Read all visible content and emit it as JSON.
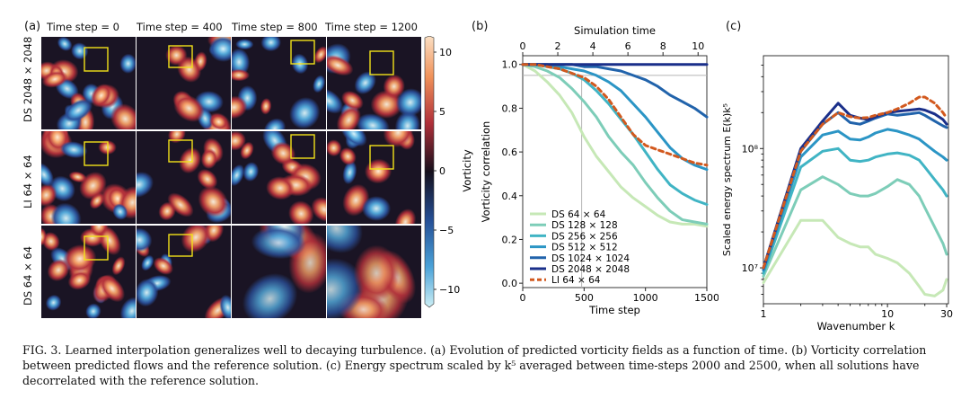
{
  "panel_a": {
    "label": "(a)",
    "columns": [
      "Time step = 0",
      "Time step = 400",
      "Time step = 800",
      "Time step = 1200"
    ],
    "rows": [
      "DS 2048 × 2048",
      "LI 64 × 64",
      "DS 64 × 64"
    ],
    "colorbar": {
      "title": "Vorticity",
      "ticks": [
        "10",
        "5",
        "0",
        "−5",
        "−10"
      ]
    }
  },
  "panel_b": {
    "label": "(b)"
  },
  "panel_c": {
    "label": "(c)"
  },
  "caption": {
    "fig": "FIG. 3.",
    "text": "Learned interpolation generalizes well to decaying turbulence. (a) Evolution of predicted vorticity fields as a function of time. (b) Vorticity correlation between predicted flows and the reference solution. (c) Energy spectrum scaled by k⁵ averaged between time-steps 2000 and 2500, when all solutions have decorrelated with the reference solution."
  },
  "chart_data": [
    {
      "type": "line",
      "title": "",
      "xlabel": "Time step",
      "ylabel": "Vorticity correlation",
      "top_xlabel": "Simulation time",
      "xlim": [
        0,
        1500
      ],
      "ylim": [
        0.0,
        1.0
      ],
      "top_xlim": [
        0,
        10.5
      ],
      "xticks": [
        "0",
        "500",
        "1000",
        "1500"
      ],
      "yticks": [
        "0.0",
        "0.2",
        "0.4",
        "0.6",
        "0.8",
        "1.0"
      ],
      "top_xticks": [
        "0",
        "2",
        "4",
        "6",
        "8",
        "10"
      ],
      "x": [
        0,
        100,
        200,
        300,
        400,
        500,
        600,
        700,
        800,
        900,
        1000,
        1100,
        1200,
        1300,
        1400,
        1500
      ],
      "series": [
        {
          "name": "DS 64 × 64",
          "color": "#c6e8b6",
          "values": [
            1.0,
            0.97,
            0.92,
            0.86,
            0.78,
            0.67,
            0.58,
            0.51,
            0.44,
            0.39,
            0.35,
            0.31,
            0.28,
            0.27,
            0.27,
            0.26
          ]
        },
        {
          "name": "DS 128 × 128",
          "color": "#7dcdb8",
          "values": [
            1.0,
            0.99,
            0.97,
            0.94,
            0.89,
            0.83,
            0.76,
            0.67,
            0.6,
            0.54,
            0.46,
            0.39,
            0.33,
            0.29,
            0.28,
            0.27
          ]
        },
        {
          "name": "DS 256 × 256",
          "color": "#40b4c4",
          "values": [
            1.0,
            1.0,
            0.99,
            0.98,
            0.96,
            0.93,
            0.88,
            0.82,
            0.75,
            0.68,
            0.6,
            0.52,
            0.45,
            0.41,
            0.38,
            0.36
          ]
        },
        {
          "name": "DS 512 × 512",
          "color": "#2b95c5",
          "values": [
            1.0,
            1.0,
            1.0,
            0.99,
            0.98,
            0.97,
            0.95,
            0.92,
            0.88,
            0.82,
            0.76,
            0.69,
            0.62,
            0.57,
            0.54,
            0.52
          ]
        },
        {
          "name": "DS 1024 × 1024",
          "color": "#2163ab",
          "values": [
            1.0,
            1.0,
            1.0,
            1.0,
            1.0,
            0.99,
            0.99,
            0.98,
            0.97,
            0.95,
            0.93,
            0.9,
            0.86,
            0.83,
            0.8,
            0.76
          ]
        },
        {
          "name": "DS 2048 × 2048",
          "color": "#1a2f8a",
          "values": [
            1.0,
            1.0,
            1.0,
            1.0,
            1.0,
            1.0,
            1.0,
            1.0,
            1.0,
            1.0,
            1.0,
            1.0,
            1.0,
            1.0,
            1.0,
            1.0
          ]
        },
        {
          "name": "LI 64 × 64",
          "color": "#d2591e",
          "dashed": true,
          "values": [
            1.0,
            1.0,
            0.99,
            0.98,
            0.96,
            0.94,
            0.9,
            0.84,
            0.76,
            0.68,
            0.63,
            0.61,
            0.59,
            0.57,
            0.55,
            0.54
          ]
        }
      ],
      "reference_lines": {
        "y": 0.95,
        "x": 480
      }
    },
    {
      "type": "line",
      "xlabel": "Wavenumber k",
      "ylabel": "Scaled energy spectrum E(k)k⁵",
      "xscale": "log",
      "yscale": "log",
      "xlim": [
        1,
        31
      ],
      "ylim": [
        5000000,
        600000000
      ],
      "xticks": [
        "1",
        "10",
        "30"
      ],
      "yticks": [
        "10⁷",
        "10⁸"
      ],
      "x": [
        1,
        2,
        3,
        4,
        5,
        6,
        7,
        8,
        10,
        12,
        15,
        18,
        20,
        24,
        28,
        30
      ],
      "series": [
        {
          "name": "DS 64 × 64",
          "color": "#c6e8b6",
          "values": [
            7500000,
            25000000,
            25000000,
            18000000,
            16000000,
            15000000,
            15000000,
            13000000,
            12000000,
            11000000,
            9000000,
            7000000,
            6000000,
            5800000,
            6500000,
            8000000
          ]
        },
        {
          "name": "DS 128 × 128",
          "color": "#7dcdb8",
          "values": [
            8500000,
            45000000,
            58000000,
            50000000,
            42000000,
            40000000,
            40000000,
            42000000,
            48000000,
            55000000,
            50000000,
            40000000,
            32000000,
            22000000,
            16000000,
            13000000
          ]
        },
        {
          "name": "DS 256 × 256",
          "color": "#40b4c4",
          "values": [
            9000000,
            70000000,
            95000000,
            100000000,
            80000000,
            78000000,
            80000000,
            85000000,
            90000000,
            92000000,
            88000000,
            80000000,
            70000000,
            55000000,
            45000000,
            40000000
          ]
        },
        {
          "name": "DS 512 × 512",
          "color": "#2b95c5",
          "values": [
            9500000,
            85000000,
            130000000,
            140000000,
            120000000,
            118000000,
            125000000,
            135000000,
            145000000,
            140000000,
            130000000,
            120000000,
            110000000,
            95000000,
            85000000,
            80000000
          ]
        },
        {
          "name": "DS 1024 × 1024",
          "color": "#2163ab",
          "values": [
            9800000,
            95000000,
            160000000,
            200000000,
            165000000,
            160000000,
            170000000,
            180000000,
            195000000,
            190000000,
            195000000,
            200000000,
            190000000,
            170000000,
            155000000,
            150000000
          ]
        },
        {
          "name": "DS 2048 × 2048",
          "color": "#1a2f8a",
          "values": [
            10000000,
            100000000,
            170000000,
            240000000,
            190000000,
            180000000,
            175000000,
            185000000,
            200000000,
            205000000,
            210000000,
            215000000,
            210000000,
            195000000,
            175000000,
            160000000
          ]
        },
        {
          "name": "LI 64 × 64",
          "color": "#d2591e",
          "dashed": true,
          "values": [
            10000000,
            95000000,
            160000000,
            200000000,
            185000000,
            180000000,
            182000000,
            190000000,
            200000000,
            215000000,
            240000000,
            270000000,
            270000000,
            240000000,
            200000000,
            180000000
          ]
        }
      ]
    }
  ]
}
